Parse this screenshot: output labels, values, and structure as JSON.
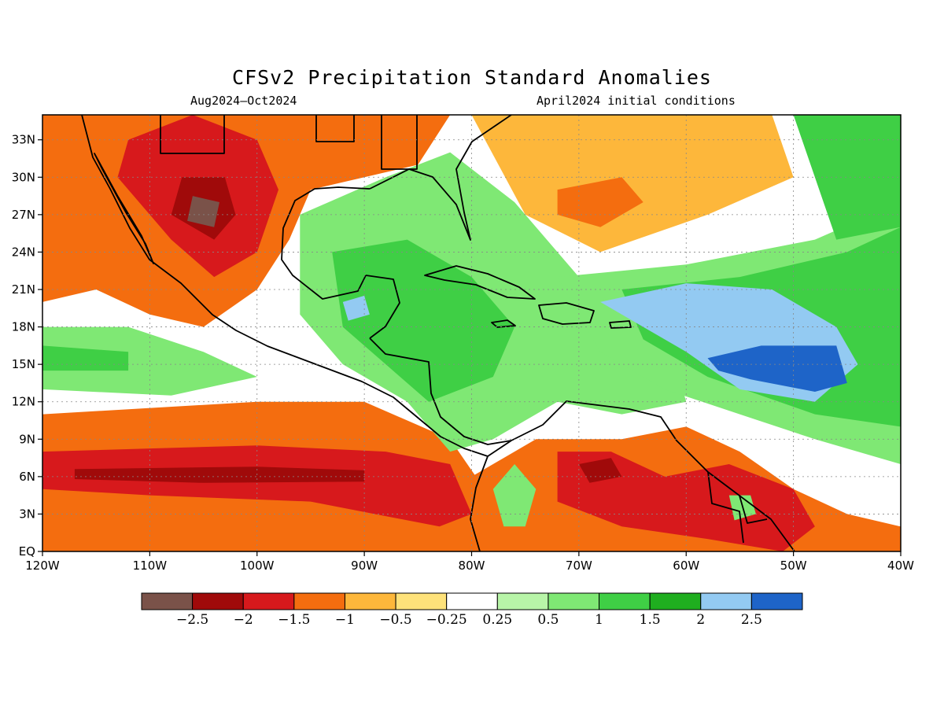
{
  "title": "CFSv2 Precipitation Standard Anomalies",
  "period": "Aug2024–Oct2024",
  "initial_conditions": "April2024 initial conditions",
  "map": {
    "lon_range": [
      -120,
      -40
    ],
    "lat_range": [
      0,
      35
    ],
    "x_ticks": [
      {
        "lon": -120,
        "label": "120W"
      },
      {
        "lon": -110,
        "label": "110W"
      },
      {
        "lon": -100,
        "label": "100W"
      },
      {
        "lon": -90,
        "label": "90W"
      },
      {
        "lon": -80,
        "label": "80W"
      },
      {
        "lon": -70,
        "label": "70W"
      },
      {
        "lon": -60,
        "label": "60W"
      },
      {
        "lon": -50,
        "label": "50W"
      },
      {
        "lon": -40,
        "label": "40W"
      }
    ],
    "y_ticks": [
      {
        "lat": 0,
        "label": "EQ"
      },
      {
        "lat": 3,
        "label": "3N"
      },
      {
        "lat": 6,
        "label": "6N"
      },
      {
        "lat": 9,
        "label": "9N"
      },
      {
        "lat": 12,
        "label": "12N"
      },
      {
        "lat": 15,
        "label": "15N"
      },
      {
        "lat": 18,
        "label": "18N"
      },
      {
        "lat": 21,
        "label": "21N"
      },
      {
        "lat": 24,
        "label": "24N"
      },
      {
        "lat": 27,
        "label": "27N"
      },
      {
        "lat": 30,
        "label": "30N"
      },
      {
        "lat": 33,
        "label": "33N"
      }
    ]
  },
  "colorbar": {
    "colors": [
      "#7a5249",
      "#a00a0a",
      "#d7191c",
      "#f46d0f",
      "#fdb73b",
      "#fee27a",
      "#ffffff",
      "#b8f5a8",
      "#7fe874",
      "#3fcf45",
      "#1fae1f",
      "#93caf2",
      "#1e64c8"
    ],
    "labels": [
      "−2.5",
      "−2",
      "−1.5",
      "−1",
      "−0.5",
      "−0.25",
      "0.25",
      "0.5",
      "1",
      "1.5",
      "2",
      "2.5"
    ]
  },
  "anomaly_regions": [
    {
      "name": "equatorial-pacific-band",
      "color": "#f46d0f",
      "points": [
        [
          -120,
          0
        ],
        [
          -120,
          11
        ],
        [
          -100,
          12
        ],
        [
          -90,
          12
        ],
        [
          -82,
          9
        ],
        [
          -78,
          4
        ],
        [
          -78,
          0
        ]
      ]
    },
    {
      "name": "itcz-dry-core",
      "color": "#d7191c",
      "points": [
        [
          -120,
          5
        ],
        [
          -120,
          8
        ],
        [
          -100,
          8.5
        ],
        [
          -88,
          8
        ],
        [
          -82,
          7
        ],
        [
          -80,
          3
        ],
        [
          -83,
          2
        ],
        [
          -95,
          4
        ],
        [
          -110,
          4.5
        ]
      ]
    },
    {
      "name": "itcz-dry-deep",
      "color": "#a00a0a",
      "points": [
        [
          -117,
          5.8
        ],
        [
          -117,
          6.6
        ],
        [
          -100,
          6.8
        ],
        [
          -90,
          6.5
        ],
        [
          -90,
          5.6
        ],
        [
          -105,
          5.5
        ]
      ]
    },
    {
      "name": "pacific-wet-band",
      "color": "#7fe874",
      "points": [
        [
          -120,
          13
        ],
        [
          -120,
          18
        ],
        [
          -112,
          18
        ],
        [
          -105,
          16
        ],
        [
          -100,
          14
        ],
        [
          -108,
          12.5
        ]
      ]
    },
    {
      "name": "pacific-wet-core",
      "color": "#3fcf45",
      "points": [
        [
          -120,
          14.5
        ],
        [
          -120,
          16.5
        ],
        [
          -112,
          16
        ],
        [
          -112,
          14.5
        ]
      ]
    },
    {
      "name": "mexico-dry",
      "color": "#f46d0f",
      "points": [
        [
          -120,
          20
        ],
        [
          -120,
          35
        ],
        [
          -82,
          35
        ],
        [
          -85,
          31
        ],
        [
          -95,
          29
        ],
        [
          -97,
          25
        ],
        [
          -100,
          21
        ],
        [
          -105,
          18
        ],
        [
          -110,
          19
        ],
        [
          -115,
          21
        ]
      ]
    },
    {
      "name": "mexico-dry-core",
      "color": "#d7191c",
      "points": [
        [
          -112,
          33
        ],
        [
          -113,
          30
        ],
        [
          -108,
          25
        ],
        [
          -104,
          22
        ],
        [
          -100,
          24
        ],
        [
          -98,
          29
        ],
        [
          -100,
          33
        ],
        [
          -106,
          35
        ]
      ]
    },
    {
      "name": "mexico-dry-deep",
      "color": "#a00a0a",
      "points": [
        [
          -107,
          30
        ],
        [
          -108,
          27
        ],
        [
          -104,
          25
        ],
        [
          -102,
          27
        ],
        [
          -103,
          30
        ]
      ]
    },
    {
      "name": "mexico-extreme",
      "color": "#7a5249",
      "points": [
        [
          -106,
          28.5
        ],
        [
          -106.5,
          26.5
        ],
        [
          -104,
          26
        ],
        [
          -103.5,
          28
        ]
      ]
    },
    {
      "name": "gulf-caribbean-wet",
      "color": "#7fe874",
      "points": [
        [
          -96,
          27
        ],
        [
          -88,
          30
        ],
        [
          -82,
          32
        ],
        [
          -76,
          28
        ],
        [
          -70,
          22
        ],
        [
          -62,
          18
        ],
        [
          -60,
          12
        ],
        [
          -66,
          11
        ],
        [
          -72,
          12
        ],
        [
          -78,
          9
        ],
        [
          -82,
          8
        ],
        [
          -86,
          12
        ],
        [
          -92,
          15
        ],
        [
          -96,
          19
        ]
      ]
    },
    {
      "name": "caribbean-wet-core",
      "color": "#3fcf45",
      "points": [
        [
          -93,
          24
        ],
        [
          -86,
          25
        ],
        [
          -80,
          22
        ],
        [
          -76,
          18
        ],
        [
          -78,
          14
        ],
        [
          -84,
          12
        ],
        [
          -88,
          15
        ],
        [
          -92,
          18
        ]
      ]
    },
    {
      "name": "yucatan-very-wet",
      "color": "#93caf2",
      "points": [
        [
          -92,
          20
        ],
        [
          -90,
          20.5
        ],
        [
          -89.5,
          19
        ],
        [
          -91.5,
          18.5
        ]
      ]
    },
    {
      "name": "atlantic-wet",
      "color": "#7fe874",
      "points": [
        [
          -72,
          22
        ],
        [
          -60,
          23
        ],
        [
          -48,
          25
        ],
        [
          -40,
          28
        ],
        [
          -40,
          7
        ],
        [
          -48,
          9
        ],
        [
          -55,
          11
        ],
        [
          -62,
          13
        ],
        [
          -68,
          16
        ],
        [
          -70,
          19
        ]
      ]
    },
    {
      "name": "atlantic-wet-core",
      "color": "#3fcf45",
      "points": [
        [
          -66,
          21
        ],
        [
          -55,
          22
        ],
        [
          -45,
          24
        ],
        [
          -40,
          26
        ],
        [
          -40,
          10
        ],
        [
          -48,
          11
        ],
        [
          -58,
          14
        ],
        [
          -64,
          17
        ]
      ]
    },
    {
      "name": "atlantic-very-wet",
      "color": "#93caf2",
      "points": [
        [
          -68,
          20
        ],
        [
          -60,
          21.5
        ],
        [
          -52,
          21
        ],
        [
          -46,
          18
        ],
        [
          -44,
          15
        ],
        [
          -48,
          12
        ],
        [
          -55,
          13
        ],
        [
          -60,
          16
        ],
        [
          -64,
          18
        ]
      ]
    },
    {
      "name": "atlantic-extreme-wet",
      "color": "#1e64c8",
      "points": [
        [
          -58,
          15.5
        ],
        [
          -53,
          16.5
        ],
        [
          -46,
          16.5
        ],
        [
          -45,
          13.5
        ],
        [
          -48,
          12.8
        ],
        [
          -54,
          13.8
        ],
        [
          -57,
          14.5
        ]
      ]
    },
    {
      "name": "northeast-atlantic-wet",
      "color": "#3fcf45",
      "points": [
        [
          -50,
          35
        ],
        [
          -40,
          35
        ],
        [
          -40,
          26
        ],
        [
          -46,
          25
        ],
        [
          -48,
          30
        ]
      ]
    },
    {
      "name": "subtropical-atlantic-dry",
      "color": "#fdb73b",
      "points": [
        [
          -80,
          35
        ],
        [
          -52,
          35
        ],
        [
          -50,
          30
        ],
        [
          -58,
          27
        ],
        [
          -68,
          24
        ],
        [
          -75,
          27
        ]
      ]
    },
    {
      "name": "subtropical-atlantic-dry-core",
      "color": "#f46d0f",
      "points": [
        [
          -72,
          29
        ],
        [
          -66,
          30
        ],
        [
          -64,
          28
        ],
        [
          -68,
          26
        ],
        [
          -72,
          27
        ]
      ]
    },
    {
      "name": "south-america-dry",
      "color": "#f46d0f",
      "points": [
        [
          -80,
          0
        ],
        [
          -80,
          6
        ],
        [
          -74,
          9
        ],
        [
          -66,
          9
        ],
        [
          -60,
          10
        ],
        [
          -55,
          8
        ],
        [
          -50,
          5
        ],
        [
          -45,
          3
        ],
        [
          -40,
          2
        ],
        [
          -40,
          0
        ]
      ]
    },
    {
      "name": "south-america-dry-core",
      "color": "#d7191c",
      "points": [
        [
          -72,
          8
        ],
        [
          -67,
          8
        ],
        [
          -62,
          6
        ],
        [
          -56,
          7
        ],
        [
          -50,
          5
        ],
        [
          -48,
          2
        ],
        [
          -51,
          0
        ],
        [
          -58,
          1
        ],
        [
          -66,
          2
        ],
        [
          -72,
          4
        ]
      ]
    },
    {
      "name": "venezuela-deep",
      "color": "#a00a0a",
      "points": [
        [
          -70,
          7
        ],
        [
          -67,
          7.5
        ],
        [
          -66,
          6
        ],
        [
          -69,
          5.5
        ]
      ]
    },
    {
      "name": "guiana-wet-patch",
      "color": "#7fe874",
      "points": [
        [
          -56,
          4.5
        ],
        [
          -54,
          4.5
        ],
        [
          -53.5,
          3
        ],
        [
          -55.5,
          2.5
        ]
      ]
    },
    {
      "name": "andes-wet-patch",
      "color": "#7fe874",
      "points": [
        [
          -78,
          5
        ],
        [
          -76,
          7
        ],
        [
          -74,
          5
        ],
        [
          -75,
          2
        ],
        [
          -77,
          2
        ]
      ]
    }
  ]
}
